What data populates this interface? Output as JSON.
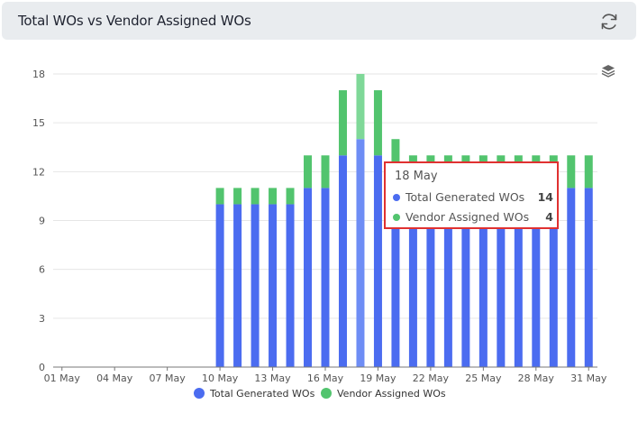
{
  "header": {
    "title": "Total WOs vs Vendor Assigned WOs"
  },
  "icons": {
    "refresh": "refresh-icon",
    "layers": "layers-icon"
  },
  "colors": {
    "total": "#4b6cf0",
    "vendor": "#52c46e",
    "total_highlight": "#6e8df5",
    "vendor_highlight": "#7fd898",
    "tooltip_border": "#e03131"
  },
  "tooltip": {
    "title": "18 May",
    "rows": [
      {
        "label": "Total Generated WOs",
        "value": "14"
      },
      {
        "label": "Vendor Assigned WOs",
        "value": "4"
      }
    ]
  },
  "chart_data": {
    "type": "bar",
    "stacked": true,
    "categories": [
      "01 May",
      "02 May",
      "03 May",
      "04 May",
      "05 May",
      "06 May",
      "07 May",
      "08 May",
      "09 May",
      "10 May",
      "11 May",
      "12 May",
      "13 May",
      "14 May",
      "15 May",
      "16 May",
      "17 May",
      "18 May",
      "19 May",
      "20 May",
      "21 May",
      "22 May",
      "23 May",
      "24 May",
      "25 May",
      "26 May",
      "27 May",
      "28 May",
      "29 May",
      "30 May",
      "31 May"
    ],
    "x_tick_labels": [
      "01 May",
      "04 May",
      "07 May",
      "10 May",
      "13 May",
      "16 May",
      "19 May",
      "22 May",
      "25 May",
      "28 May",
      "31 May"
    ],
    "series": [
      {
        "name": "Total Generated WOs",
        "values": [
          0,
          0,
          0,
          0,
          0,
          0,
          0,
          0,
          0,
          10,
          10,
          10,
          10,
          10,
          11,
          11,
          13,
          14,
          13,
          12,
          11,
          11,
          11,
          11,
          11,
          11,
          11,
          11,
          11,
          11,
          11
        ]
      },
      {
        "name": "Vendor Assigned WOs",
        "values": [
          0,
          0,
          0,
          0,
          0,
          0,
          0,
          0,
          0,
          1,
          1,
          1,
          1,
          1,
          2,
          2,
          4,
          4,
          4,
          2,
          2,
          2,
          2,
          2,
          2,
          2,
          2,
          2,
          2,
          2,
          2
        ]
      }
    ],
    "y_ticks": [
      0,
      3,
      6,
      9,
      12,
      15,
      18
    ],
    "ylim": [
      0,
      18
    ],
    "highlighted_category": "18 May",
    "legend_position": "bottom-center",
    "grid": true
  }
}
